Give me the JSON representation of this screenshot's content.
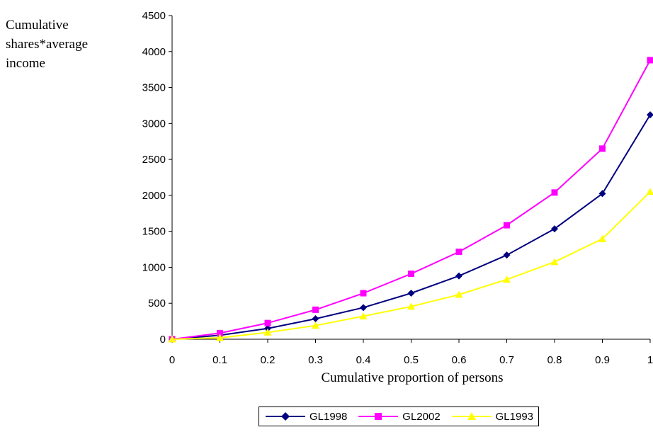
{
  "chart_data": {
    "type": "line",
    "xlabel": "Cumulative proportion of persons",
    "ylabel": [
      "Cumulative",
      "shares*average",
      "income"
    ],
    "x": [
      0,
      0.1,
      0.2,
      0.3,
      0.4,
      0.5,
      0.6,
      0.7,
      0.8,
      0.9,
      1
    ],
    "x_tick_labels": [
      "0",
      "0.1",
      "0.2",
      "0.3",
      "0.4",
      "0.5",
      "0.6",
      "0.7",
      "0.8",
      "0.9",
      "1"
    ],
    "ylim": [
      0,
      4500
    ],
    "y_ticks": [
      0,
      500,
      1000,
      1500,
      2000,
      2500,
      3000,
      3500,
      4000,
      4500
    ],
    "grid": false,
    "legend_position": "bottom-center",
    "series": [
      {
        "name": "GL1998",
        "color": "#000080",
        "marker": "diamond",
        "values": [
          0,
          55,
          150,
          285,
          440,
          640,
          880,
          1170,
          1535,
          2025,
          3120
        ]
      },
      {
        "name": "GL2002",
        "color": "#ff00ff",
        "marker": "square",
        "values": [
          0,
          85,
          225,
          410,
          640,
          910,
          1215,
          1585,
          2040,
          2650,
          3880
        ]
      },
      {
        "name": "GL1993",
        "color": "#ffff00",
        "marker": "triangle",
        "values": [
          0,
          20,
          95,
          190,
          320,
          455,
          620,
          830,
          1075,
          1395,
          2050
        ]
      }
    ]
  }
}
